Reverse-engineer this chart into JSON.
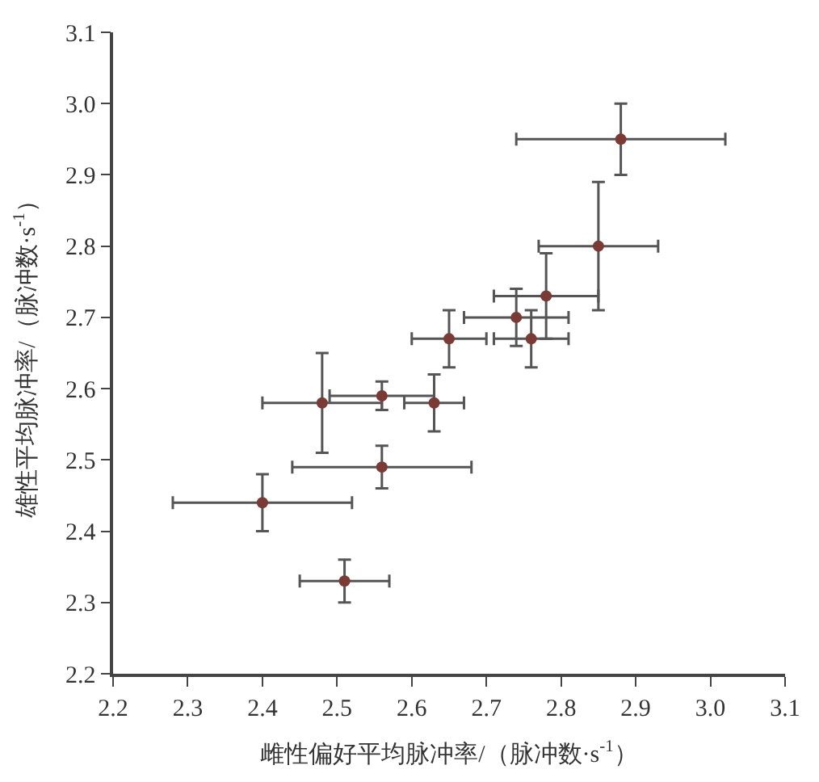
{
  "chart_data": {
    "type": "scatter",
    "xlabel": "雌性偏好平均脉冲率/（脉冲数·s$^{-1}$）",
    "ylabel": "雄性平均脉冲率/（脉冲数·s$^{-1}$）",
    "x": [
      2.88,
      2.85,
      2.78,
      2.74,
      2.76,
      2.65,
      2.56,
      2.63,
      2.48,
      2.56,
      2.4,
      2.51
    ],
    "values": [
      2.95,
      2.8,
      2.73,
      2.7,
      2.67,
      2.67,
      2.59,
      2.58,
      2.58,
      2.49,
      2.44,
      2.33
    ],
    "xerrors": [
      0.14,
      0.08,
      0.07,
      0.07,
      0.05,
      0.05,
      0.07,
      0.04,
      0.08,
      0.12,
      0.12,
      0.06
    ],
    "errors": [
      0.05,
      0.09,
      0.06,
      0.04,
      0.04,
      0.04,
      0.02,
      0.04,
      0.07,
      0.03,
      0.04,
      0.03
    ],
    "color": "#7a3a35",
    "marker": "circle",
    "grid": false,
    "legend": false,
    "xlim": [
      2.2,
      3.1
    ],
    "ylim": [
      2.2,
      3.1
    ],
    "xticks": [
      2.2,
      2.3,
      2.4,
      2.5,
      2.6,
      2.7,
      2.8,
      2.9,
      {
        "value": 3.0,
        "label": "3.0"
      },
      3.1
    ],
    "yticks": [
      2.2,
      2.3,
      2.4,
      2.5,
      2.6,
      2.7,
      2.8,
      2.9,
      {
        "value": 3.0,
        "label": "3.0"
      },
      3.1
    ]
  }
}
